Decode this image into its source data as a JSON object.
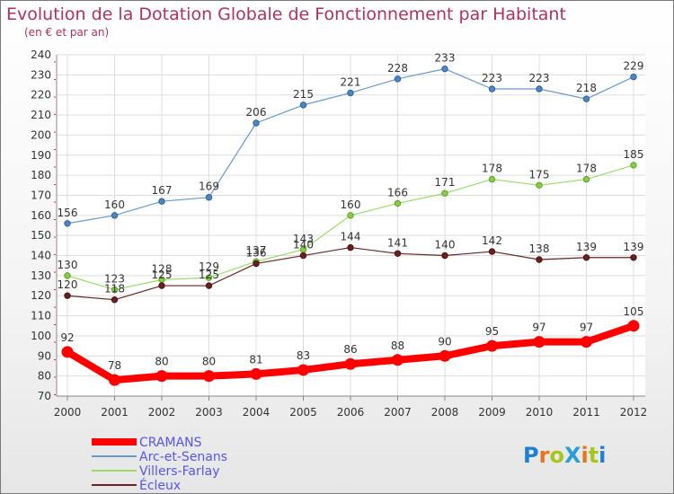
{
  "chart_data": {
    "type": "line",
    "title": "Evolution de la Dotation Globale de Fonctionnement par Habitant",
    "subtitle": "(en € et par an)",
    "x": [
      "2000",
      "2001",
      "2002",
      "2003",
      "2004",
      "2005",
      "2006",
      "2007",
      "2008",
      "2009",
      "2010",
      "2011",
      "2012"
    ],
    "ylim": [
      70,
      240
    ],
    "yticks": [
      70,
      80,
      90,
      100,
      110,
      120,
      130,
      140,
      150,
      160,
      170,
      180,
      190,
      200,
      210,
      220,
      230,
      240
    ],
    "grid": true,
    "legend_position": "bottom-left",
    "series": [
      {
        "name": "CRAMANS",
        "color": "#ff0000",
        "values": [
          92,
          78,
          80,
          80,
          81,
          83,
          86,
          88,
          90,
          95,
          97,
          97,
          105
        ]
      },
      {
        "name": "Arc-et-Senans",
        "color": "#6699cc",
        "values": [
          156,
          160,
          167,
          169,
          206,
          215,
          221,
          228,
          233,
          223,
          223,
          218,
          229
        ]
      },
      {
        "name": "Villers-Farlay",
        "color": "#99dd66",
        "values": [
          130,
          123,
          128,
          129,
          137,
          143,
          160,
          166,
          171,
          178,
          175,
          178,
          185
        ]
      },
      {
        "name": "Écleux",
        "color": "#6b2222",
        "values": [
          120,
          118,
          125,
          125,
          136,
          140,
          144,
          141,
          140,
          142,
          138,
          139,
          139
        ]
      }
    ]
  },
  "logo": "ProXiti"
}
